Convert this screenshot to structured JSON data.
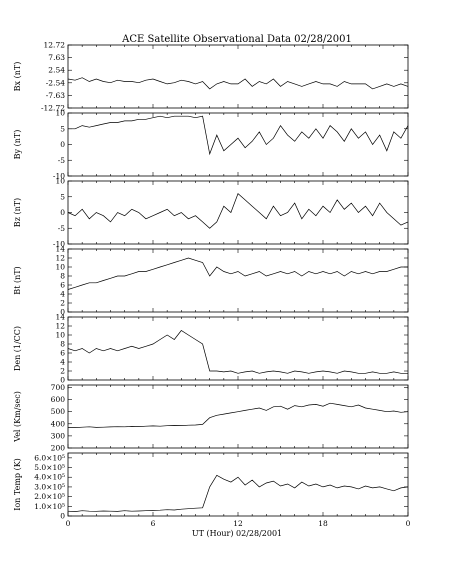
{
  "chart_data": {
    "type": "line",
    "title": "ACE Satellite Observational Data   02/28/2001",
    "xlabel": "UT (Hour)  02/28/2001",
    "x_ticks": [
      "0",
      "6",
      "12",
      "18",
      "0"
    ],
    "xlim": [
      0,
      24
    ],
    "panels": [
      {
        "ylabel": "Bx (nT)",
        "ylim": [
          -12.72,
          12.72
        ],
        "y_ticks": [
          "12.72",
          "7.63",
          "2.54",
          "-2.54",
          "-7.63",
          "-12.72"
        ],
        "y_tick_values": [
          12.72,
          7.63,
          2.54,
          -2.54,
          -7.63,
          -12.72
        ],
        "x": [
          0,
          0.5,
          1,
          1.5,
          2,
          2.5,
          3,
          3.5,
          4,
          4.5,
          5,
          5.5,
          6,
          6.5,
          7,
          7.5,
          8,
          8.5,
          9,
          9.5,
          10,
          10.5,
          11,
          11.5,
          12,
          12.5,
          13,
          13.5,
          14,
          14.5,
          15,
          15.5,
          16,
          16.5,
          17,
          17.5,
          18,
          18.5,
          19,
          19.5,
          20,
          20.5,
          21,
          21.5,
          22,
          22.5,
          23,
          23.5,
          24
        ],
        "y": [
          -1,
          -1.5,
          -0.5,
          -2,
          -1,
          -2,
          -2.5,
          -1.5,
          -2,
          -2,
          -2.5,
          -1.5,
          -1,
          -2,
          -3,
          -2.5,
          -1.5,
          -2,
          -3,
          -2,
          -5,
          -3,
          -2,
          -3,
          -3,
          -1,
          -4,
          -2,
          -3,
          -1,
          -4,
          -2,
          -3,
          -4,
          -3,
          -2,
          -3,
          -3,
          -4,
          -2,
          -3,
          -3,
          -3,
          -5,
          -4,
          -3,
          -4,
          -3,
          -4
        ]
      },
      {
        "ylabel": "By (nT)",
        "ylim": [
          -10,
          10
        ],
        "y_ticks": [
          "10",
          "5",
          "0",
          "-5",
          "-10"
        ],
        "y_tick_values": [
          10,
          5,
          0,
          -5,
          -10
        ],
        "x": [
          0,
          0.5,
          1,
          1.5,
          2,
          2.5,
          3,
          3.5,
          4,
          4.5,
          5,
          5.5,
          6,
          6.5,
          7,
          7.5,
          8,
          8.5,
          9,
          9.5,
          10,
          10.5,
          11,
          11.5,
          12,
          12.5,
          13,
          13.5,
          14,
          14.5,
          15,
          15.5,
          16,
          16.5,
          17,
          17.5,
          18,
          18.5,
          19,
          19.5,
          20,
          20.5,
          21,
          21.5,
          22,
          22.5,
          23,
          23.5,
          24
        ],
        "y": [
          5,
          5,
          6,
          5.5,
          6,
          6.5,
          7,
          7,
          7.5,
          7.5,
          8,
          8,
          8.5,
          9,
          8.5,
          9,
          9,
          9,
          8.5,
          9,
          -3,
          3,
          -2,
          0,
          2,
          -1,
          1,
          4,
          0,
          2,
          6,
          3,
          1,
          4,
          2,
          5,
          2,
          6,
          4,
          1,
          5,
          2,
          4,
          0,
          3,
          -2,
          4,
          2,
          6
        ]
      },
      {
        "ylabel": "Bz (nT)",
        "ylim": [
          -10,
          10
        ],
        "y_ticks": [
          "10",
          "5",
          "0",
          "-5",
          "-10"
        ],
        "y_tick_values": [
          10,
          5,
          0,
          -5,
          -10
        ],
        "x": [
          0,
          0.5,
          1,
          1.5,
          2,
          2.5,
          3,
          3.5,
          4,
          4.5,
          5,
          5.5,
          6,
          6.5,
          7,
          7.5,
          8,
          8.5,
          9,
          9.5,
          10,
          10.5,
          11,
          11.5,
          12,
          12.5,
          13,
          13.5,
          14,
          14.5,
          15,
          15.5,
          16,
          16.5,
          17,
          17.5,
          18,
          18.5,
          19,
          19.5,
          20,
          20.5,
          21,
          21.5,
          22,
          22.5,
          23,
          23.5,
          24
        ],
        "y": [
          0,
          -1,
          1,
          -2,
          0,
          -1,
          -3,
          0,
          -1,
          1,
          0,
          -2,
          -1,
          0,
          1,
          -1,
          0,
          -2,
          -1,
          -3,
          -5,
          -3,
          2,
          0,
          6,
          4,
          2,
          0,
          -2,
          2,
          -1,
          0,
          3,
          -2,
          1,
          -1,
          2,
          0,
          4,
          1,
          3,
          0,
          2,
          -1,
          3,
          0,
          -2,
          -4,
          -3
        ]
      },
      {
        "ylabel": "Bt (nT)",
        "ylim": [
          0,
          14
        ],
        "y_ticks": [
          "14",
          "12",
          "10",
          "8",
          "6",
          "4",
          "2",
          "0"
        ],
        "y_tick_values": [
          14,
          12,
          10,
          8,
          6,
          4,
          2,
          0
        ],
        "x": [
          0,
          0.5,
          1,
          1.5,
          2,
          2.5,
          3,
          3.5,
          4,
          4.5,
          5,
          5.5,
          6,
          6.5,
          7,
          7.5,
          8,
          8.5,
          9,
          9.5,
          10,
          10.5,
          11,
          11.5,
          12,
          12.5,
          13,
          13.5,
          14,
          14.5,
          15,
          15.5,
          16,
          16.5,
          17,
          17.5,
          18,
          18.5,
          19,
          19.5,
          20,
          20.5,
          21,
          21.5,
          22,
          22.5,
          23,
          23.5,
          24
        ],
        "y": [
          5,
          5.5,
          6,
          6.5,
          6.5,
          7,
          7.5,
          8,
          8,
          8.5,
          9,
          9,
          9.5,
          10,
          10.5,
          11,
          11.5,
          12,
          11.5,
          11,
          8,
          10,
          9,
          8.5,
          9,
          8,
          8.5,
          9,
          8,
          8.5,
          9,
          8.5,
          9,
          8,
          9,
          8.5,
          9,
          8.5,
          9,
          8,
          9,
          8.5,
          9,
          8.5,
          9,
          9,
          9.5,
          10,
          10
        ]
      },
      {
        "ylabel": "Den (1/CC)",
        "ylim": [
          0,
          14
        ],
        "y_ticks": [
          "14",
          "12",
          "10",
          "8",
          "6",
          "4",
          "2",
          "0"
        ],
        "y_tick_values": [
          14,
          12,
          10,
          8,
          6,
          4,
          2,
          0
        ],
        "x": [
          0,
          0.5,
          1,
          1.5,
          2,
          2.5,
          3,
          3.5,
          4,
          4.5,
          5,
          5.5,
          6,
          6.5,
          7,
          7.5,
          8,
          8.5,
          9,
          9.5,
          10,
          10.5,
          11,
          11.5,
          12,
          12.5,
          13,
          13.5,
          14,
          14.5,
          15,
          15.5,
          16,
          16.5,
          17,
          17.5,
          18,
          18.5,
          19,
          19.5,
          20,
          20.5,
          21,
          21.5,
          22,
          22.5,
          23,
          23.5,
          24
        ],
        "y": [
          7,
          6.5,
          7,
          6,
          7,
          6.5,
          7,
          6.5,
          7,
          7.5,
          7,
          7.5,
          8,
          9,
          10,
          9,
          11,
          10,
          9,
          8,
          2,
          2,
          1.8,
          2,
          1.5,
          1.8,
          2,
          1.5,
          1.8,
          2,
          1.8,
          1.5,
          2,
          1.8,
          1.5,
          1.8,
          2,
          1.8,
          1.5,
          2,
          1.8,
          1.5,
          1.5,
          1.8,
          1.5,
          1.5,
          1.8,
          1.5,
          1.5
        ]
      },
      {
        "ylabel": "Vel (Km/sec)",
        "ylim": [
          200,
          720
        ],
        "y_ticks": [
          "700",
          "600",
          "500",
          "400",
          "300",
          "200"
        ],
        "y_tick_values": [
          700,
          600,
          500,
          400,
          300,
          200
        ],
        "x": [
          0,
          0.5,
          1,
          1.5,
          2,
          2.5,
          3,
          3.5,
          4,
          4.5,
          5,
          5.5,
          6,
          6.5,
          7,
          7.5,
          8,
          8.5,
          9,
          9.5,
          10,
          10.5,
          11,
          11.5,
          12,
          12.5,
          13,
          13.5,
          14,
          14.5,
          15,
          15.5,
          16,
          16.5,
          17,
          17.5,
          18,
          18.5,
          19,
          19.5,
          20,
          20.5,
          21,
          21.5,
          22,
          22.5,
          23,
          23.5,
          24
        ],
        "y": [
          370,
          368,
          372,
          375,
          370,
          372,
          374,
          376,
          375,
          378,
          377,
          380,
          382,
          380,
          384,
          386,
          385,
          388,
          390,
          395,
          450,
          470,
          480,
          490,
          500,
          510,
          520,
          530,
          510,
          540,
          545,
          520,
          550,
          540,
          555,
          560,
          545,
          570,
          560,
          550,
          540,
          555,
          530,
          520,
          510,
          500,
          505,
          495,
          500
        ]
      },
      {
        "ylabel": "Ion Temp (K)",
        "ylim": [
          0,
          650000
        ],
        "y_ticks": [
          "6.0×10⁵",
          "5.0×10⁵",
          "4.0×10⁵",
          "3.0×10⁵",
          "2.0×10⁵",
          "1.0×10⁵",
          "0"
        ],
        "y_tick_values": [
          600000,
          500000,
          400000,
          300000,
          200000,
          100000,
          0
        ],
        "x": [
          0,
          0.5,
          1,
          1.5,
          2,
          2.5,
          3,
          3.5,
          4,
          4.5,
          5,
          5.5,
          6,
          6.5,
          7,
          7.5,
          8,
          8.5,
          9,
          9.5,
          10,
          10.5,
          11,
          11.5,
          12,
          12.5,
          13,
          13.5,
          14,
          14.5,
          15,
          15.5,
          16,
          16.5,
          17,
          17.5,
          18,
          18.5,
          19,
          19.5,
          20,
          20.5,
          21,
          21.5,
          22,
          22.5,
          23,
          23.5,
          24
        ],
        "y": [
          50000,
          45000,
          55000,
          50000,
          48000,
          52000,
          50000,
          47000,
          55000,
          50000,
          52000,
          55000,
          58000,
          60000,
          65000,
          62000,
          70000,
          75000,
          80000,
          85000,
          300000,
          420000,
          380000,
          350000,
          400000,
          320000,
          370000,
          300000,
          340000,
          360000,
          310000,
          330000,
          290000,
          350000,
          310000,
          330000,
          300000,
          320000,
          290000,
          310000,
          300000,
          280000,
          310000,
          290000,
          300000,
          280000,
          260000,
          290000,
          300000
        ]
      }
    ]
  }
}
